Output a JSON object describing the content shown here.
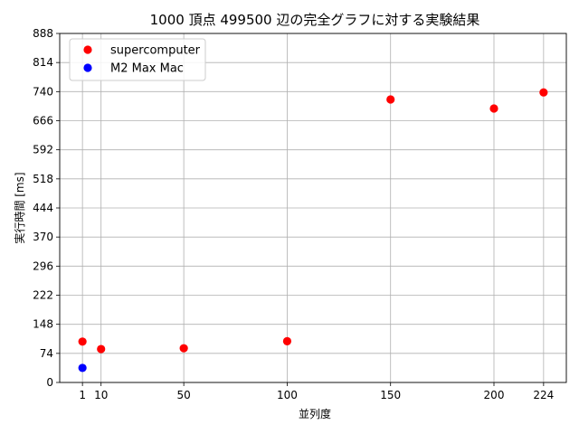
{
  "chart_data": {
    "type": "scatter",
    "title": "1000 頂点 499500 辺の完全グラフに対する実験結果",
    "xlabel": "並列度",
    "ylabel": "実行時間 [ms]",
    "xlim": [
      -10,
      235
    ],
    "ylim": [
      0,
      888
    ],
    "xticks": [
      1,
      10,
      50,
      100,
      150,
      200,
      224
    ],
    "yticks": [
      0,
      74,
      148,
      222,
      296,
      370,
      444,
      518,
      592,
      666,
      740,
      814,
      888
    ],
    "grid": true,
    "legend_position": "top-left",
    "series": [
      {
        "name": "supercomputer",
        "color": "#ff0000",
        "points": [
          {
            "x": 1,
            "y": 104
          },
          {
            "x": 10,
            "y": 85
          },
          {
            "x": 50,
            "y": 87
          },
          {
            "x": 100,
            "y": 105
          },
          {
            "x": 150,
            "y": 720
          },
          {
            "x": 200,
            "y": 697
          },
          {
            "x": 224,
            "y": 738
          }
        ]
      },
      {
        "name": "M2 Max Mac",
        "color": "#0000ff",
        "points": [
          {
            "x": 1,
            "y": 37
          }
        ]
      }
    ]
  }
}
